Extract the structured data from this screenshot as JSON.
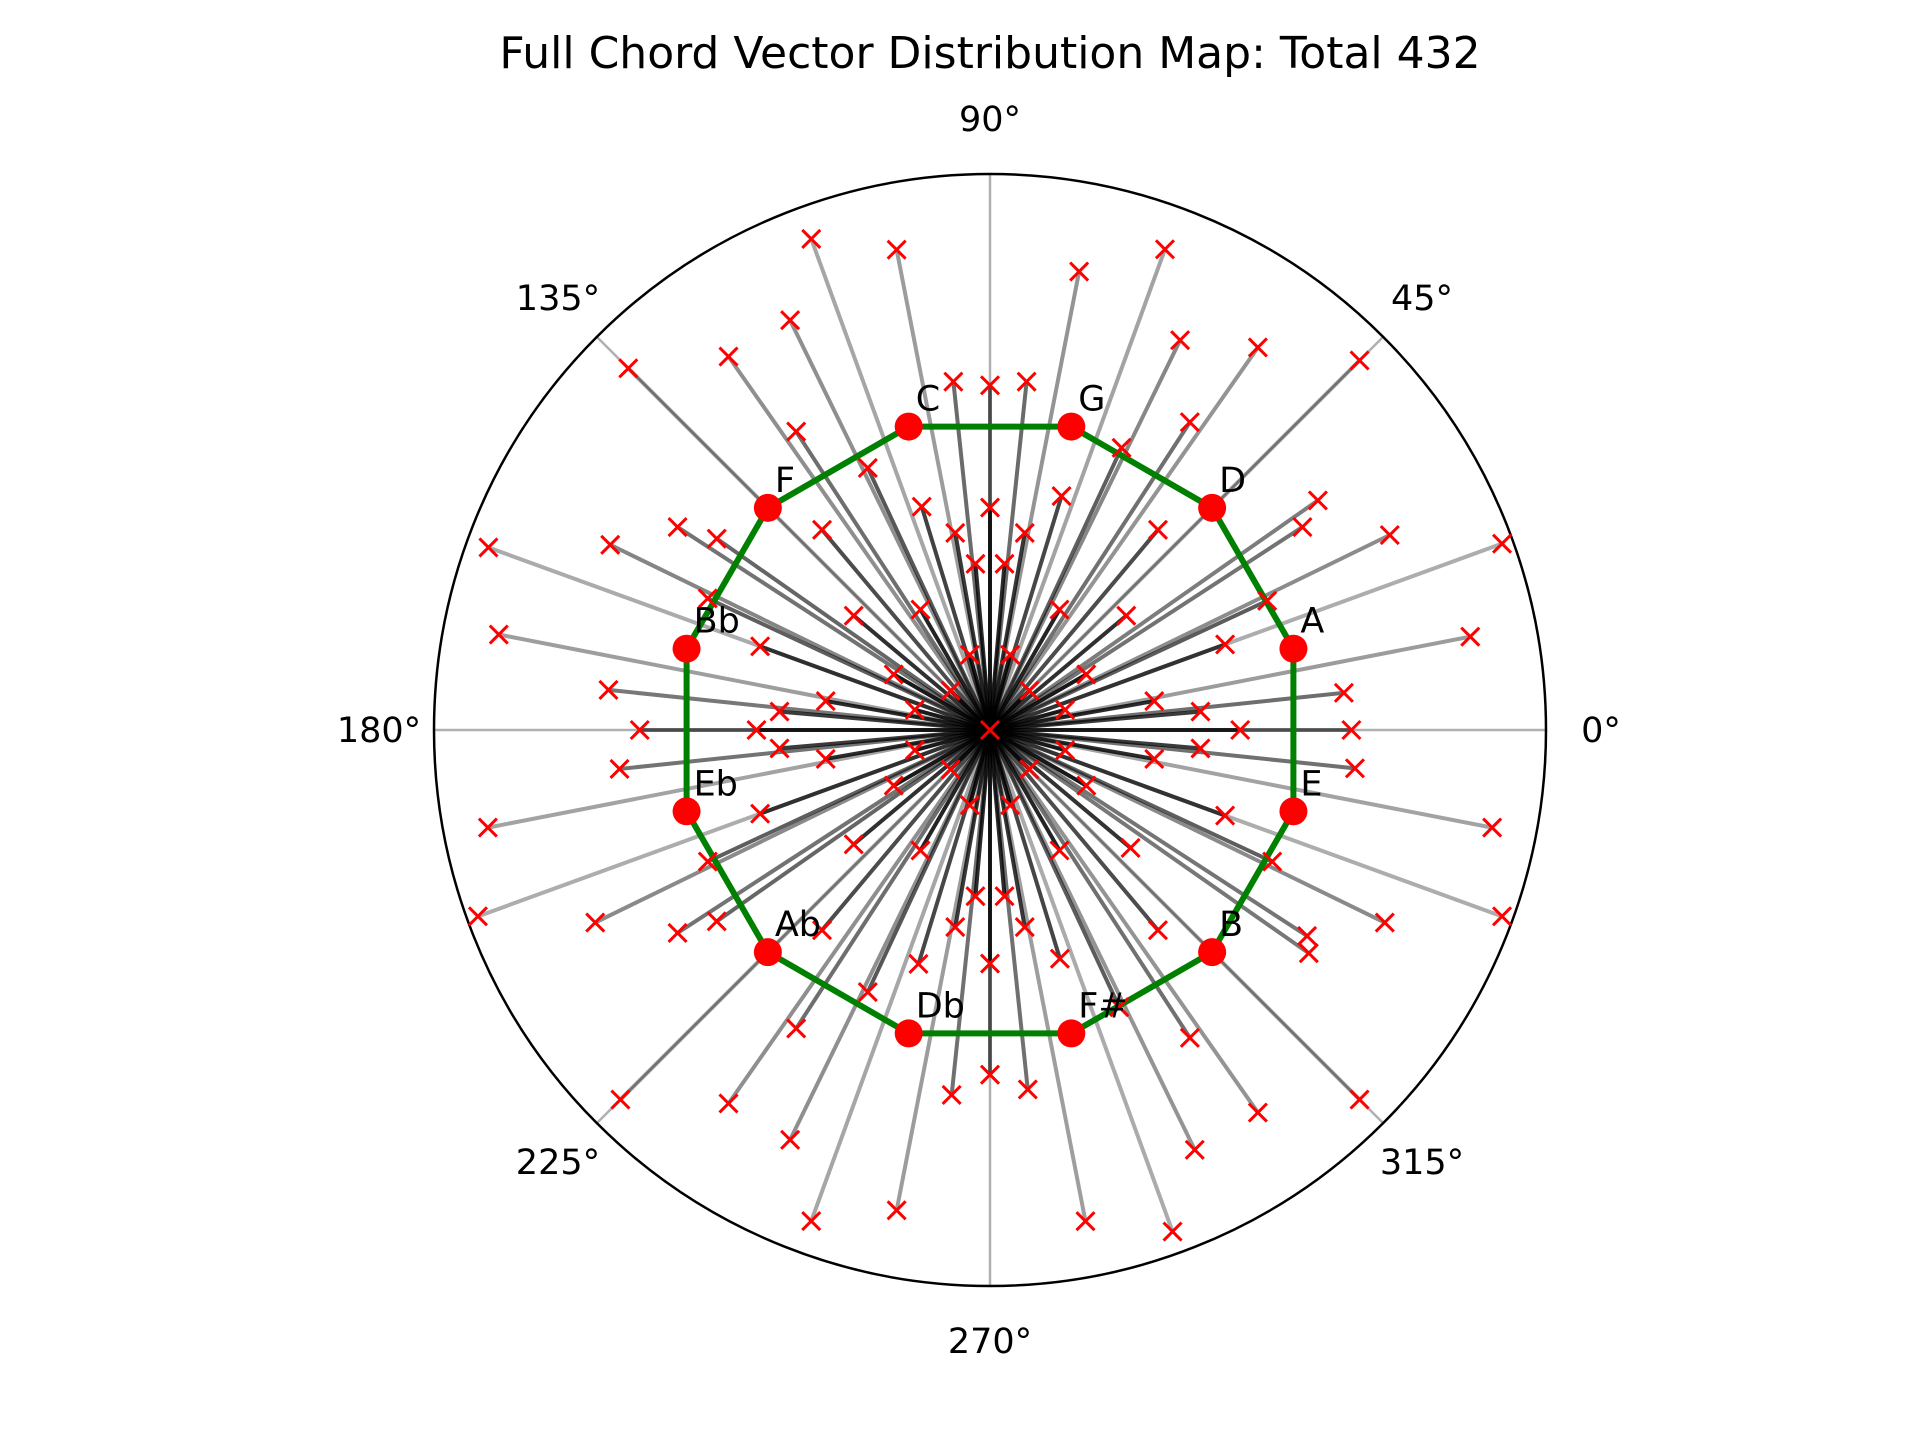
{
  "chart_data": {
    "type": "scatter",
    "projection": "polar",
    "title": "Full Chord Vector Distribution Map: Total 432",
    "angle_ticks": [
      {
        "deg": 0,
        "label": "0°"
      },
      {
        "deg": 45,
        "label": "45°"
      },
      {
        "deg": 90,
        "label": "90°"
      },
      {
        "deg": 135,
        "label": "135°"
      },
      {
        "deg": 180,
        "label": "180°"
      },
      {
        "deg": 225,
        "label": "225°"
      },
      {
        "deg": 270,
        "label": "270°"
      },
      {
        "deg": 315,
        "label": "315°"
      }
    ],
    "grid": true,
    "radial_labels_shown": false,
    "rmax": 1.0,
    "colors": {
      "marker": "#ff0000",
      "polygon": "#008000",
      "vector": "#000000",
      "axis": "#000000",
      "grid": "#b0b0b0"
    },
    "circle_of_fifths": {
      "radius": 0.565,
      "notes": [
        {
          "name": "A",
          "angle_deg": 15
        },
        {
          "name": "D",
          "angle_deg": 45
        },
        {
          "name": "G",
          "angle_deg": 75
        },
        {
          "name": "C",
          "angle_deg": 105
        },
        {
          "name": "F",
          "angle_deg": 135
        },
        {
          "name": "Bb",
          "angle_deg": 165
        },
        {
          "name": "Eb",
          "angle_deg": 195
        },
        {
          "name": "Ab",
          "angle_deg": 225
        },
        {
          "name": "Db",
          "angle_deg": 255
        },
        {
          "name": "F#",
          "angle_deg": 285
        },
        {
          "name": "B",
          "angle_deg": 315
        },
        {
          "name": "E",
          "angle_deg": 345
        }
      ]
    },
    "vectors": {
      "count": 432,
      "points": [
        {
          "angle": 90,
          "r": 0.62
        },
        {
          "angle": 90,
          "r": 0.4
        },
        {
          "angle": 270,
          "r": 0.62
        },
        {
          "angle": 270,
          "r": 0.42
        },
        {
          "angle": 0,
          "r": 0.65
        },
        {
          "angle": 0,
          "r": 0.45
        },
        {
          "angle": 180,
          "r": 0.63
        },
        {
          "angle": 180,
          "r": 0.42
        },
        {
          "angle": 79,
          "r": 0.84
        },
        {
          "angle": 101,
          "r": 0.88
        },
        {
          "angle": 259,
          "r": 0.88
        },
        {
          "angle": 281,
          "r": 0.9
        },
        {
          "angle": 11,
          "r": 0.88
        },
        {
          "angle": 169,
          "r": 0.9
        },
        {
          "angle": 191,
          "r": 0.92
        },
        {
          "angle": 349,
          "r": 0.92
        },
        {
          "angle": 45,
          "r": 0.94
        },
        {
          "angle": 135,
          "r": 0.92
        },
        {
          "angle": 225,
          "r": 0.94
        },
        {
          "angle": 315,
          "r": 0.94
        },
        {
          "angle": 64,
          "r": 0.78
        },
        {
          "angle": 116,
          "r": 0.82
        },
        {
          "angle": 244,
          "r": 0.82
        },
        {
          "angle": 296,
          "r": 0.84
        },
        {
          "angle": 26,
          "r": 0.8
        },
        {
          "angle": 154,
          "r": 0.76
        },
        {
          "angle": 206,
          "r": 0.79
        },
        {
          "angle": 334,
          "r": 0.79
        },
        {
          "angle": 84,
          "r": 0.63
        },
        {
          "angle": 96,
          "r": 0.63
        },
        {
          "angle": 264,
          "r": 0.66
        },
        {
          "angle": 276,
          "r": 0.65
        },
        {
          "angle": 57,
          "r": 0.66
        },
        {
          "angle": 123,
          "r": 0.64
        },
        {
          "angle": 237,
          "r": 0.64
        },
        {
          "angle": 303,
          "r": 0.66
        },
        {
          "angle": 33,
          "r": 0.67
        },
        {
          "angle": 147,
          "r": 0.67
        },
        {
          "angle": 213,
          "r": 0.67
        },
        {
          "angle": 327,
          "r": 0.68
        },
        {
          "angle": 6,
          "r": 0.64
        },
        {
          "angle": 174,
          "r": 0.69
        },
        {
          "angle": 186,
          "r": 0.67
        },
        {
          "angle": 354,
          "r": 0.66
        },
        {
          "angle": 73,
          "r": 0.44
        },
        {
          "angle": 107,
          "r": 0.42
        },
        {
          "angle": 253,
          "r": 0.44
        },
        {
          "angle": 287,
          "r": 0.43
        },
        {
          "angle": 20,
          "r": 0.45
        },
        {
          "angle": 160,
          "r": 0.44
        },
        {
          "angle": 200,
          "r": 0.44
        },
        {
          "angle": 340,
          "r": 0.45
        },
        {
          "angle": 50,
          "r": 0.47
        },
        {
          "angle": 130,
          "r": 0.47
        },
        {
          "angle": 230,
          "r": 0.47
        },
        {
          "angle": 310,
          "r": 0.47
        },
        {
          "angle": 85,
          "r": 0.3
        },
        {
          "angle": 95,
          "r": 0.3
        },
        {
          "angle": 265,
          "r": 0.3
        },
        {
          "angle": 275,
          "r": 0.3
        },
        {
          "angle": 40,
          "r": 0.32
        },
        {
          "angle": 140,
          "r": 0.32
        },
        {
          "angle": 220,
          "r": 0.32
        },
        {
          "angle": 320,
          "r": 0.33
        },
        {
          "angle": 10,
          "r": 0.3
        },
        {
          "angle": 170,
          "r": 0.3
        },
        {
          "angle": 190,
          "r": 0.3
        },
        {
          "angle": 350,
          "r": 0.3
        },
        {
          "angle": 60,
          "r": 0.25
        },
        {
          "angle": 120,
          "r": 0.25
        },
        {
          "angle": 240,
          "r": 0.25
        },
        {
          "angle": 300,
          "r": 0.25
        },
        {
          "angle": 30,
          "r": 0.2
        },
        {
          "angle": 150,
          "r": 0.2
        },
        {
          "angle": 210,
          "r": 0.2
        },
        {
          "angle": 330,
          "r": 0.2
        },
        {
          "angle": 75,
          "r": 0.14
        },
        {
          "angle": 105,
          "r": 0.14
        },
        {
          "angle": 255,
          "r": 0.14
        },
        {
          "angle": 285,
          "r": 0.14
        },
        {
          "angle": 15,
          "r": 0.14
        },
        {
          "angle": 165,
          "r": 0.14
        },
        {
          "angle": 195,
          "r": 0.14
        },
        {
          "angle": 345,
          "r": 0.14
        },
        {
          "angle": 45,
          "r": 0.1
        },
        {
          "angle": 135,
          "r": 0.1
        },
        {
          "angle": 225,
          "r": 0.1
        },
        {
          "angle": 315,
          "r": 0.1
        },
        {
          "angle": 70,
          "r": 0.92
        },
        {
          "angle": 110,
          "r": 0.94
        },
        {
          "angle": 250,
          "r": 0.94
        },
        {
          "angle": 290,
          "r": 0.96
        },
        {
          "angle": 20,
          "r": 0.98
        },
        {
          "angle": 160,
          "r": 0.96
        },
        {
          "angle": 200,
          "r": 0.98
        },
        {
          "angle": 340,
          "r": 0.98
        },
        {
          "angle": 55,
          "r": 0.84
        },
        {
          "angle": 125,
          "r": 0.82
        },
        {
          "angle": 235,
          "r": 0.82
        },
        {
          "angle": 305,
          "r": 0.84
        },
        {
          "angle": 35,
          "r": 0.72
        },
        {
          "angle": 145,
          "r": 0.6
        },
        {
          "angle": 215,
          "r": 0.6
        },
        {
          "angle": 325,
          "r": 0.7
        },
        {
          "angle": 65,
          "r": 0.56
        },
        {
          "angle": 115,
          "r": 0.52
        },
        {
          "angle": 245,
          "r": 0.52
        },
        {
          "angle": 295,
          "r": 0.55
        },
        {
          "angle": 25,
          "r": 0.55
        },
        {
          "angle": 155,
          "r": 0.56
        },
        {
          "angle": 205,
          "r": 0.56
        },
        {
          "angle": 335,
          "r": 0.56
        },
        {
          "angle": 80,
          "r": 0.36
        },
        {
          "angle": 100,
          "r": 0.36
        },
        {
          "angle": 260,
          "r": 0.36
        },
        {
          "angle": 280,
          "r": 0.36
        },
        {
          "angle": 5,
          "r": 0.38
        },
        {
          "angle": 175,
          "r": 0.38
        },
        {
          "angle": 185,
          "r": 0.38
        },
        {
          "angle": 355,
          "r": 0.38
        },
        {
          "angle": 0,
          "r": 0.0
        }
      ]
    }
  }
}
